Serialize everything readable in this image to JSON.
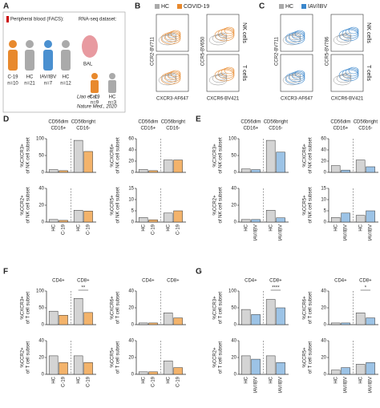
{
  "panel_a": {
    "label": "A",
    "facs_title": "Peripheral blood (FACS):",
    "rnaseq_title": "RNA-seq dataset:",
    "cohorts": [
      {
        "name": "C-19",
        "n": "n=10"
      },
      {
        "name": "HC",
        "n": "n=21"
      },
      {
        "name": "IAV/IBV",
        "n": "n=7"
      },
      {
        "name": "HC",
        "n": "n=12"
      }
    ],
    "bal": "BAL",
    "rna_cohorts": [
      {
        "name": "C-19",
        "n": "n=9"
      },
      {
        "name": "HC",
        "n": "n=3"
      }
    ],
    "citation": [
      "Liao et al.,",
      "Nature Med., 2020"
    ]
  },
  "panel_b": {
    "label": "B",
    "legend": [
      "HC",
      "COVID-19"
    ],
    "y_labels": [
      "CCR2-BV711",
      "CCR5-BV650"
    ],
    "x_labels": [
      "CXCR3-AF647",
      "CXCR6-BV421"
    ],
    "row_labels": [
      "NK cells",
      "T cells"
    ]
  },
  "panel_c": {
    "label": "C",
    "legend": [
      "HC",
      "IAV/IBV"
    ],
    "y_labels": [
      "CCR2-BV711",
      "CCR5-BV786"
    ],
    "x_labels": [
      "CXCR3-AF647",
      "CXCR6-BV421"
    ],
    "row_labels": [
      "NK cells",
      "T cells"
    ]
  },
  "bar_panels": [
    {
      "label": "D",
      "headers": [
        [
          "CD56dim",
          "CD16+"
        ],
        [
          "CD56bright",
          "CD16-"
        ]
      ],
      "groups": [
        "HC",
        "C-19"
      ],
      "colors": [
        "#d4d4d4",
        "#f3b36b"
      ],
      "plots": [
        {
          "ylabel": [
            "%CXCR3+",
            "of NK cell subset"
          ],
          "ylim": [
            0,
            100
          ],
          "yticks": [
            0,
            50,
            100
          ],
          "values": [
            8,
            5,
            95,
            62
          ]
        },
        {
          "ylabel": [
            "%CXCR6+",
            "of NK cell subset"
          ],
          "ylim": [
            0,
            60
          ],
          "yticks": [
            0,
            20,
            40,
            60
          ],
          "values": [
            5,
            3,
            22,
            22
          ]
        },
        {
          "ylabel": [
            "%CCR2+",
            "of NK cell subset"
          ],
          "ylim": [
            0,
            40
          ],
          "yticks": [
            0,
            20,
            40
          ],
          "values": [
            3,
            2,
            14,
            13
          ]
        },
        {
          "ylabel": [
            "%CCR5+",
            "of NK cell subset"
          ],
          "ylim": [
            0,
            15
          ],
          "yticks": [
            0,
            5,
            10,
            15
          ],
          "values": [
            2,
            1,
            4,
            5
          ]
        }
      ]
    },
    {
      "label": "E",
      "headers": [
        [
          "CD56dim",
          "CD16+"
        ],
        [
          "CD56bright",
          "CD16-"
        ]
      ],
      "groups": [
        "HC",
        "IAV/IBV"
      ],
      "colors": [
        "#d4d4d4",
        "#9cc3e6"
      ],
      "plots": [
        {
          "ylabel": [
            "%CXCR3+",
            "of NK cell subset"
          ],
          "ylim": [
            0,
            100
          ],
          "yticks": [
            0,
            50,
            100
          ],
          "values": [
            10,
            8,
            95,
            60
          ]
        },
        {
          "ylabel": [
            "%CXCR6+",
            "of NK cell subset"
          ],
          "ylim": [
            0,
            60
          ],
          "yticks": [
            0,
            20,
            40,
            60
          ],
          "values": [
            12,
            4,
            22,
            10
          ]
        },
        {
          "ylabel": [
            "%CCR2+",
            "of NK cell subset"
          ],
          "ylim": [
            0,
            40
          ],
          "yticks": [
            0,
            20,
            40
          ],
          "values": [
            3,
            3,
            14,
            5
          ]
        },
        {
          "ylabel": [
            "%CCR5+",
            "of NK cell subset"
          ],
          "ylim": [
            0,
            15
          ],
          "yticks": [
            0,
            5,
            10,
            15
          ],
          "values": [
            2,
            4,
            3,
            5
          ]
        }
      ]
    },
    {
      "label": "F",
      "headers": [
        [
          "CD4+"
        ],
        [
          "CD8+"
        ]
      ],
      "groups": [
        "HC",
        "C-19"
      ],
      "colors": [
        "#d4d4d4",
        "#f3b36b"
      ],
      "plots": [
        {
          "ylabel": [
            "%CXCR3+",
            "of T cell subset"
          ],
          "ylim": [
            0,
            100
          ],
          "yticks": [
            0,
            50,
            100
          ],
          "values": [
            40,
            28,
            78,
            36
          ],
          "significance": "**"
        },
        {
          "ylabel": [
            "%CXCR6+",
            "of T cell subset"
          ],
          "ylim": [
            0,
            40
          ],
          "yticks": [
            0,
            20,
            40
          ],
          "values": [
            2,
            2,
            14,
            8
          ]
        },
        {
          "ylabel": [
            "%CCR2+",
            "of T cell subset"
          ],
          "ylim": [
            0,
            40
          ],
          "yticks": [
            0,
            20,
            40
          ],
          "values": [
            22,
            14,
            22,
            14
          ]
        },
        {
          "ylabel": [
            "%CCR5+",
            "of T cell subset"
          ],
          "ylim": [
            0,
            40
          ],
          "yticks": [
            0,
            20,
            40
          ],
          "values": [
            3,
            3,
            16,
            8
          ]
        }
      ]
    },
    {
      "label": "G",
      "headers": [
        [
          "CD4+"
        ],
        [
          "CD8+"
        ]
      ],
      "groups": [
        "HC",
        "IAV/IBV"
      ],
      "colors": [
        "#d4d4d4",
        "#9cc3e6"
      ],
      "plots": [
        {
          "ylabel": [
            "%CXCR3+",
            "of T cell subset"
          ],
          "ylim": [
            0,
            100
          ],
          "yticks": [
            0,
            50,
            100
          ],
          "values": [
            45,
            30,
            75,
            50
          ],
          "significance": "****"
        },
        {
          "ylabel": [
            "%CXCR6+",
            "of T cell subset"
          ],
          "ylim": [
            0,
            40
          ],
          "yticks": [
            0,
            20,
            40
          ],
          "values": [
            2,
            2,
            14,
            8
          ],
          "significance": "*"
        },
        {
          "ylabel": [
            "%CCR2+",
            "of T cell subset"
          ],
          "ylim": [
            0,
            40
          ],
          "yticks": [
            0,
            20,
            40
          ],
          "values": [
            22,
            18,
            22,
            14
          ]
        },
        {
          "ylabel": [
            "%CCR5+",
            "of T cell subset"
          ],
          "ylim": [
            0,
            40
          ],
          "yticks": [
            0,
            20,
            40
          ],
          "values": [
            5,
            8,
            12,
            14
          ]
        }
      ]
    }
  ]
}
